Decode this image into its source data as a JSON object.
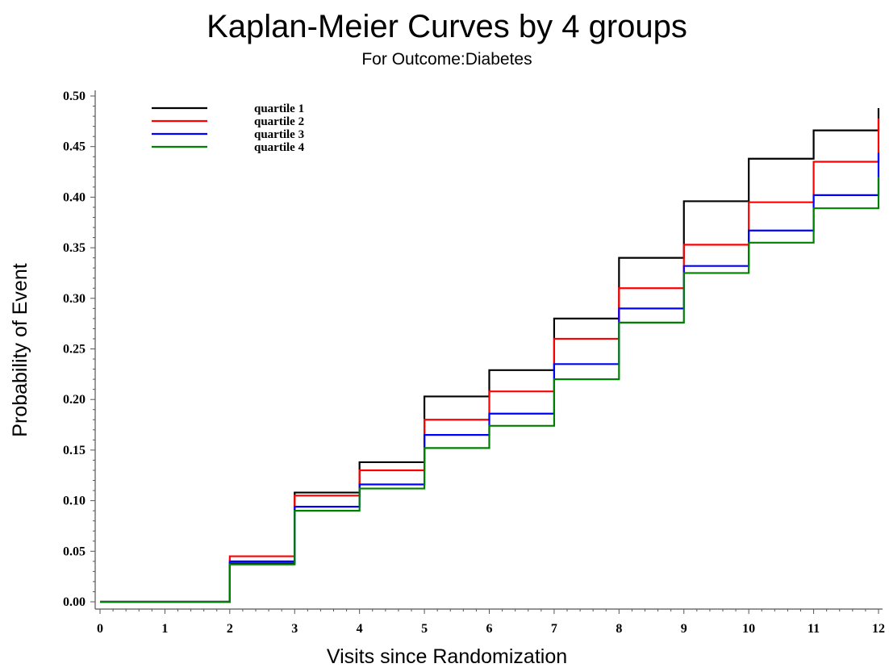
{
  "chart_data": {
    "type": "line",
    "step": true,
    "title": "Kaplan-Meier Curves by 4 groups",
    "subtitle": "For Outcome:Diabetes",
    "xlabel": "Visits since Randomization",
    "ylabel": "Probability of Event",
    "xlim": [
      0,
      12
    ],
    "ylim": [
      0,
      0.5
    ],
    "x_ticks": [
      "0",
      "1",
      "2",
      "3",
      "4",
      "5",
      "6",
      "7",
      "8",
      "9",
      "10",
      "11",
      "12"
    ],
    "y_ticks": [
      "0.00",
      "0.05",
      "0.10",
      "0.15",
      "0.20",
      "0.25",
      "0.30",
      "0.35",
      "0.40",
      "0.45",
      "0.50"
    ],
    "grid": false,
    "legend_position": "top-left",
    "x": [
      0,
      2,
      3,
      4,
      5,
      6,
      7,
      8,
      9,
      10,
      11,
      12
    ],
    "series": [
      {
        "name": "quartile 1",
        "color": "#000000",
        "values": [
          0,
          0.038,
          0.108,
          0.138,
          0.203,
          0.229,
          0.28,
          0.34,
          0.396,
          0.438,
          0.466,
          0.488
        ]
      },
      {
        "name": "quartile 2",
        "color": "#ff0000",
        "values": [
          0,
          0.045,
          0.105,
          0.13,
          0.18,
          0.208,
          0.26,
          0.31,
          0.353,
          0.395,
          0.435,
          0.478
        ]
      },
      {
        "name": "quartile 3",
        "color": "#0000ff",
        "values": [
          0,
          0.04,
          0.094,
          0.116,
          0.165,
          0.186,
          0.235,
          0.29,
          0.332,
          0.367,
          0.402,
          0.444
        ]
      },
      {
        "name": "quartile 4",
        "color": "#008000",
        "values": [
          0,
          0.037,
          0.09,
          0.112,
          0.152,
          0.174,
          0.22,
          0.276,
          0.325,
          0.355,
          0.389,
          0.42
        ]
      }
    ]
  }
}
